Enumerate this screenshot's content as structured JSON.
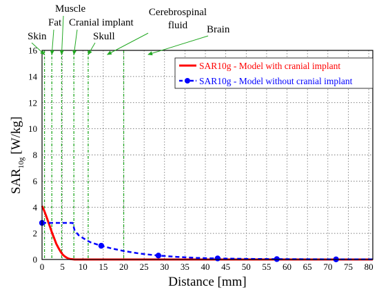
{
  "chart_data": {
    "type": "line",
    "xlabel": "Distance [mm]",
    "ylabel": {
      "main": "SAR",
      "sub": "10g",
      "unit": "[W/kg]"
    },
    "xlim": [
      0,
      81
    ],
    "ylim": [
      0,
      16
    ],
    "x_ticks": [
      0,
      5,
      10,
      15,
      20,
      25,
      30,
      35,
      40,
      45,
      50,
      55,
      60,
      65,
      70,
      75,
      80
    ],
    "y_ticks": [
      0,
      2,
      4,
      6,
      8,
      10,
      12,
      14,
      16
    ],
    "grid": "dotted",
    "legend_position": "top-right",
    "series": [
      {
        "name": "SAR10g - Model with cranial implant",
        "color": "#ff0000",
        "style": "solid",
        "marker": "none",
        "x": [
          0,
          0.5,
          1,
          1.5,
          2,
          2.5,
          3,
          3.5,
          4,
          4.5,
          5,
          5.5,
          6,
          6.5,
          7,
          8,
          10,
          20,
          40,
          60,
          81
        ],
        "y": [
          4.1,
          3.75,
          3.35,
          2.9,
          2.45,
          2.0,
          1.6,
          1.2,
          0.9,
          0.62,
          0.4,
          0.25,
          0.14,
          0.07,
          0.03,
          0.0,
          0.0,
          0.0,
          0.0,
          0.0,
          0.0
        ]
      },
      {
        "name": "SAR10g - Model without cranial implant",
        "color": "#0000ff",
        "style": "dashed",
        "marker": "circle",
        "x": [
          0,
          2,
          4,
          6,
          7.5,
          8,
          9,
          10,
          11,
          12,
          14.5,
          17,
          20,
          24,
          28.5,
          33,
          38,
          43,
          50,
          57.5,
          65,
          72,
          81
        ],
        "y": [
          2.8,
          2.8,
          2.8,
          2.8,
          2.8,
          2.2,
          1.85,
          1.65,
          1.45,
          1.3,
          1.05,
          0.85,
          0.65,
          0.45,
          0.3,
          0.2,
          0.12,
          0.08,
          0.05,
          0.03,
          0.02,
          0.01,
          0.01
        ],
        "markers": [
          {
            "x": 0,
            "y": 2.8
          },
          {
            "x": 14.5,
            "y": 1.05
          },
          {
            "x": 28.5,
            "y": 0.3
          },
          {
            "x": 43,
            "y": 0.08
          },
          {
            "x": 57.5,
            "y": 0.03
          },
          {
            "x": 72,
            "y": 0.01
          }
        ]
      }
    ],
    "layer_boundaries": [
      0.6,
      2.4,
      4.8,
      7.8,
      11.3,
      20
    ],
    "annotations": [
      {
        "id": "skin",
        "label": "Skin",
        "target_x": 0.6
      },
      {
        "id": "fat",
        "label": "Fat",
        "target_x": 2.4
      },
      {
        "id": "muscle",
        "label": "Muscle",
        "target_x": 4.8
      },
      {
        "id": "cranial",
        "label": "Cranial implant",
        "target_x": 7.8
      },
      {
        "id": "skull",
        "label": "Skull",
        "target_x": 11.3
      },
      {
        "id": "csf",
        "label": "Cerebrospinal fluid",
        "lines": [
          "Cerebrospinal",
          "fluid"
        ],
        "target_x": 16
      },
      {
        "id": "brain",
        "label": "Brain",
        "target_x": 26
      }
    ],
    "colors": {
      "annotation": "#22a822",
      "grid": "#555555",
      "axis": "#000000"
    }
  }
}
